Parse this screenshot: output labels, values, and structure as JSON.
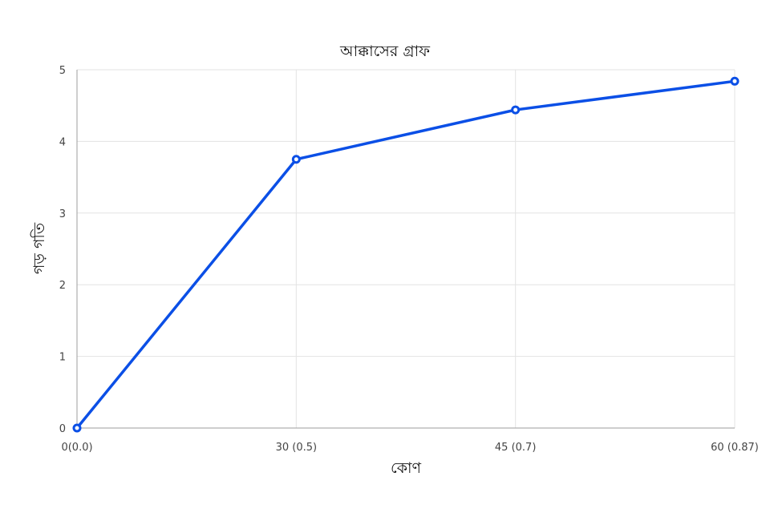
{
  "chart_data": {
    "type": "line",
    "title": "আক্কাসের গ্রাফ",
    "xlabel": "কোণ",
    "ylabel": "গড় গতি",
    "categories": [
      "0(0.0)",
      "30 (0.5)",
      "45 (0.7)",
      "60 (0.87)"
    ],
    "series": [
      {
        "values": [
          0,
          3.75,
          4.44,
          4.84
        ],
        "color": "#0b4fe6"
      }
    ],
    "ylim": [
      0,
      5
    ],
    "yticks": [
      "0",
      "1",
      "2",
      "3",
      "4",
      "5"
    ],
    "grid": true,
    "legend": "none"
  }
}
